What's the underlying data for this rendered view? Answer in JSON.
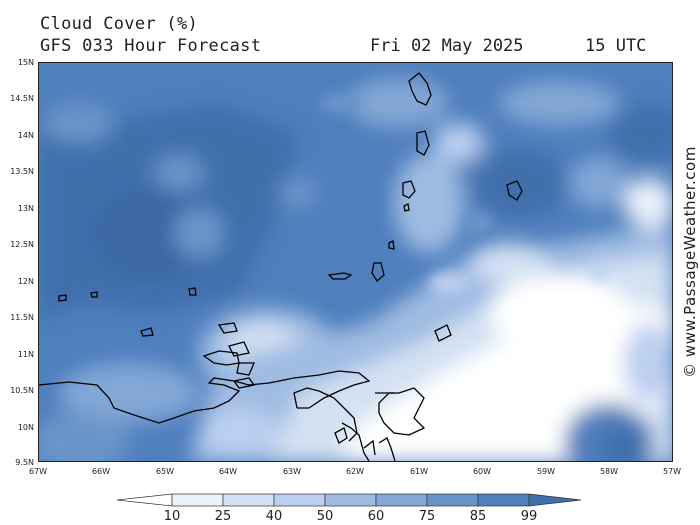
{
  "title": "Cloud Cover (%)",
  "subtitle": "GFS 033 Hour Forecast",
  "date": "Fri 02 May 2025",
  "time": "15 UTC",
  "credit": "© www.PassageWeather.com",
  "y_ticks": [
    "15N",
    "14.5N",
    "14N",
    "13.5N",
    "13N",
    "12.5N",
    "12N",
    "11.5N",
    "11N",
    "10.5N",
    "10N",
    "9.5N"
  ],
  "x_ticks": [
    "67W",
    "66W",
    "65W",
    "64W",
    "63W",
    "62W",
    "61W",
    "60W",
    "59W",
    "58W",
    "57W"
  ],
  "legend": {
    "labels": [
      "10",
      "25",
      "40",
      "50",
      "60",
      "75",
      "85",
      "99"
    ],
    "colors": [
      "#ffffff",
      "#eaf1fa",
      "#d3e1f2",
      "#bccff0",
      "#9fbbe2",
      "#83a7d6",
      "#6a94c9",
      "#4f7fbd",
      "#3f6fac"
    ]
  },
  "colors": {
    "deep": "#3f6fac",
    "coast": "#000000"
  }
}
